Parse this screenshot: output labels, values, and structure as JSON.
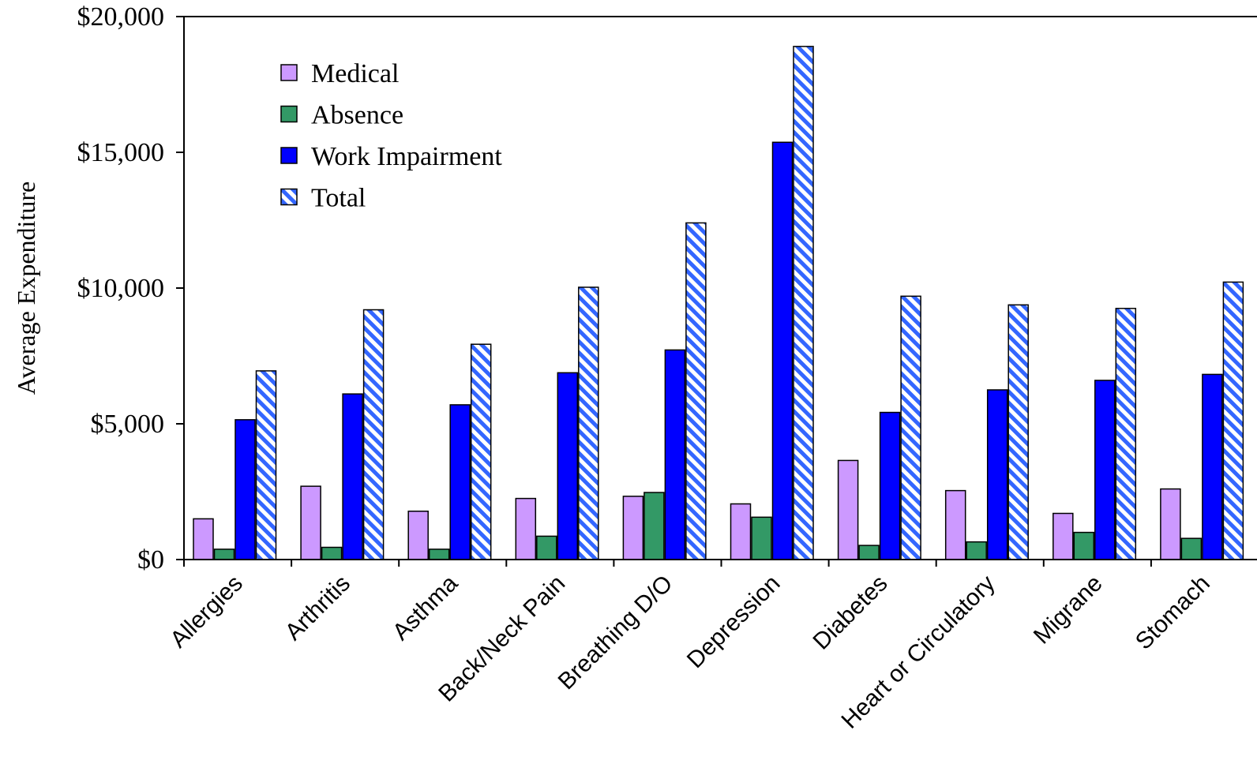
{
  "chart_data": {
    "type": "bar",
    "title": "",
    "xlabel": "",
    "ylabel": "Average Expenditure",
    "ylim": [
      0,
      20000
    ],
    "yticks": [
      0,
      5000,
      10000,
      15000,
      20000
    ],
    "ytick_labels": [
      "$0",
      "$5,000",
      "$10,000",
      "$15,000",
      "$20,000"
    ],
    "categories": [
      "Allergies",
      "Arthritis",
      "Asthma",
      "Back/Neck Pain",
      "Breathing D/O",
      "Depression",
      "Diabetes",
      "Heart or Circulatory",
      "Migrane",
      "Stomach"
    ],
    "legend_position": "top-left",
    "grid": false,
    "series": [
      {
        "name": "Medical",
        "color": "#cc99ff",
        "pattern": "solid",
        "values": [
          1500,
          2700,
          1780,
          2250,
          2330,
          2050,
          3650,
          2540,
          1700,
          2600
        ]
      },
      {
        "name": "Absence",
        "color": "#339966",
        "pattern": "solid",
        "values": [
          380,
          450,
          380,
          860,
          2470,
          1560,
          520,
          650,
          1000,
          780
        ]
      },
      {
        "name": "Work Impairment",
        "color": "#0000ff",
        "pattern": "solid",
        "values": [
          5150,
          6100,
          5700,
          6880,
          7720,
          15370,
          5420,
          6250,
          6600,
          6820
        ]
      },
      {
        "name": "Total",
        "color": "#3366ff",
        "pattern": "diagonal-stripes",
        "values": [
          6950,
          9200,
          7930,
          10030,
          12400,
          18900,
          9700,
          9380,
          9250,
          10220
        ]
      }
    ]
  }
}
